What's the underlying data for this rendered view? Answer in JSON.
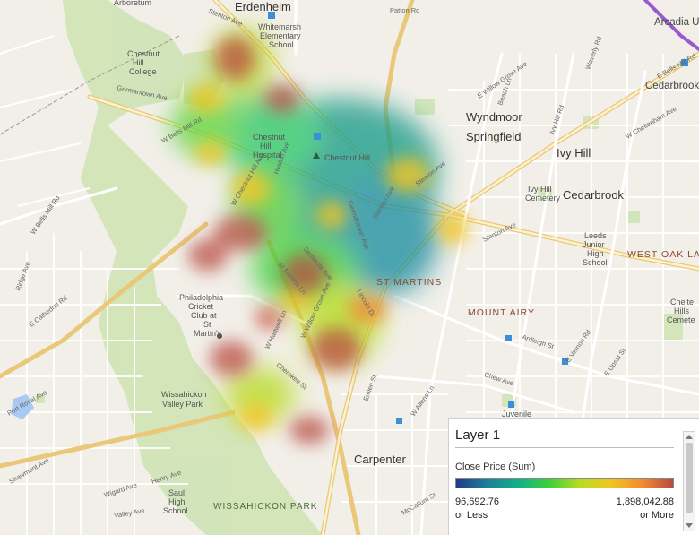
{
  "map": {
    "places": {
      "erdenheim": "Erdenheim",
      "arcadia": "Arcadia U",
      "cedarbrook_top": "Cedarbrook",
      "wyndmoor": "Wyndmoor",
      "springfield": "Springfield",
      "ivy_hill": "Ivy Hill",
      "cedarbrook": "Cedarbrook",
      "carpenter": "Carpenter",
      "juvenile": "Juvenile"
    },
    "pois": {
      "arboretum": "Arboretum",
      "whitemarsh_1": "Whitemarsh",
      "whitemarsh_2": "Elementary",
      "whitemarsh_3": "School",
      "chc_1": "Chestnut",
      "chc_2": "Hill",
      "chc_3": "College",
      "chh_1": "Chestnut",
      "chh_2": "Hill",
      "chh_3": "Hospital",
      "chestnut_hill": "Chestnut Hill",
      "ivy_cem_1": "Ivy Hill",
      "ivy_cem_2": "Cemetery",
      "leeds_1": "Leeds",
      "leeds_2": "Junior",
      "leeds_3": "High",
      "leeds_4": "School",
      "pcc_1": "Philadelphia",
      "pcc_2": "Cricket",
      "pcc_3": "Club at",
      "pcc_4": "St",
      "pcc_5": "Martin's",
      "wvp_1": "Wissahickon",
      "wvp_2": "Valley Park",
      "saul_1": "Saul",
      "saul_2": "High",
      "saul_3": "School",
      "chel_1": "Chelte",
      "chel_2": "Hills",
      "chel_3": "Cemete"
    },
    "neighborhoods": {
      "st_martins": "ST MARTINS",
      "mount_airy": "MOUNT AIRY",
      "west_oak_lane": "WEST OAK LAN",
      "wissahickon_park": "WISSAHICKON PARK"
    },
    "roads": {
      "stenton_top": "Stenton Ave",
      "patton": "Patton Rd",
      "germantown": "Germantown Ave",
      "w_bells_mill": "W Bells Mill Rd",
      "bells_mill": "W Bells Mill Rd",
      "ridge": "Ridge Ave",
      "cathedral": "E Cathedral Rd",
      "henry": "Henry Ave",
      "port_royal": "Port Royal Ave",
      "shawmont": "Shawmont Ave",
      "wigard": "Wigard Ave",
      "valley": "Valley Ave",
      "willow_grove_top": "E Willow Grove Ave",
      "beach": "Beach Ln",
      "ivy_hill_rd": "Ivy Hill Rd",
      "waverly": "Waverly Rd",
      "e_bells_mill": "E Bells Mill Rd",
      "chelten": "W Cheltenham Ave",
      "stenton_mid": "Stenton Ave",
      "stenton_right": "Stenton Ave",
      "ardleigh": "Ardleigh St",
      "chew": "Chew Ave",
      "e_vernon": "E Vernon Rd",
      "e_upsal": "E Upsal St",
      "w_allens": "W Allens Ln",
      "emlen": "Emlen St",
      "mccallum": "McCallum St",
      "cherokee": "Cherokee St",
      "hartwell": "W Hartwell Ln",
      "willow_grove_mid": "W Willow Grove Ave",
      "seminole": "Seminole Ave",
      "st_martins_ln": "St Martins Ln",
      "lincoln": "Lincoln Dr",
      "germantown_mid": "Germantown Ave",
      "stenton_hill": "Stenton Ave",
      "w_chestnut_hill": "W Chestnut Hill Ave",
      "huston": "Huston Ave"
    }
  },
  "legend": {
    "layer_title": "Layer 1",
    "field": "Close Price (Sum)",
    "min_value": "96,692.76",
    "min_label": "or Less",
    "max_value": "1,898,042.88",
    "max_label": "or More",
    "gradient_colors": [
      "#1f3a8a",
      "#1d7f9a",
      "#12b08a",
      "#3fcf3a",
      "#b7dc22",
      "#f3c620",
      "#f08a33",
      "#b84a3f"
    ]
  }
}
